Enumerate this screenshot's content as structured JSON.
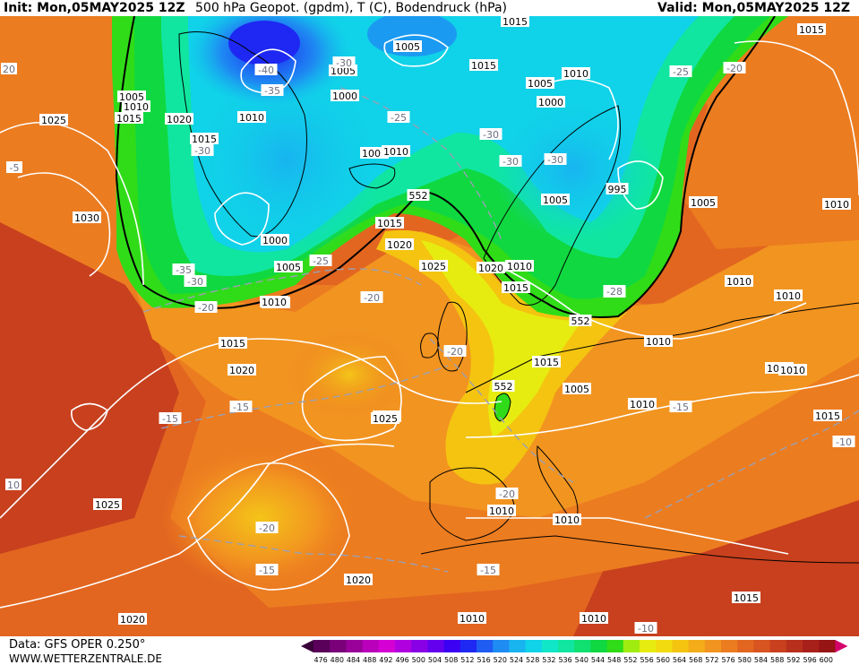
{
  "header": {
    "init": "Init: Mon,05MAY2025 12Z",
    "title": "500 hPa Geopot. (gpdm), T (C), Bodendruck (hPa)",
    "valid": "Valid: Mon,05MAY2025 12Z"
  },
  "footer": {
    "data_source": "Data: GFS OPER 0.250°",
    "website": "WWW.WETTERZENTRALE.DE"
  },
  "legend": {
    "values": [
      "476",
      "480",
      "484",
      "488",
      "492",
      "496",
      "500",
      "504",
      "508",
      "512",
      "516",
      "520",
      "524",
      "528",
      "532",
      "536",
      "540",
      "544",
      "548",
      "552",
      "556",
      "560",
      "564",
      "568",
      "572",
      "576",
      "580",
      "584",
      "588",
      "592",
      "596",
      "600"
    ],
    "colors": [
      "#5a005a",
      "#7a007a",
      "#9a009a",
      "#ba00ba",
      "#d400d4",
      "#b000e0",
      "#8a00e6",
      "#6400ee",
      "#3c00f2",
      "#1e28f2",
      "#1e5cf2",
      "#1e8cf2",
      "#18b4f0",
      "#10d2e8",
      "#10e6c8",
      "#10e6a0",
      "#10e070",
      "#10d840",
      "#30dc18",
      "#a0ec10",
      "#e6ec10",
      "#f2dc10",
      "#f4c410",
      "#f4ac18",
      "#f29420",
      "#ec7c20",
      "#e26620",
      "#d85420",
      "#c8401e",
      "#b8301c",
      "#a8201a",
      "#961414"
    ]
  },
  "isobar_labels": [
    {
      "text": "1015"
    },
    {
      "text": "1005"
    },
    {
      "text": "1005"
    },
    {
      "text": "1015"
    },
    {
      "text": "1010"
    },
    {
      "text": "1015"
    },
    {
      "text": "1025"
    },
    {
      "text": "1020"
    },
    {
      "text": "1010"
    },
    {
      "text": "1005"
    },
    {
      "text": "1005"
    },
    {
      "text": "1010"
    },
    {
      "text": "1015"
    },
    {
      "text": "1000"
    },
    {
      "text": "1005"
    },
    {
      "text": "1010"
    },
    {
      "text": "1030"
    },
    {
      "text": "1000"
    },
    {
      "text": "1005"
    },
    {
      "text": "1010"
    },
    {
      "text": "1015"
    },
    {
      "text": "1020"
    },
    {
      "text": "1025"
    },
    {
      "text": "1020"
    },
    {
      "text": "1010"
    },
    {
      "text": "1015"
    },
    {
      "text": "1005"
    },
    {
      "text": "995"
    },
    {
      "text": "1005"
    },
    {
      "text": "1010"
    },
    {
      "text": "1010"
    },
    {
      "text": "1010"
    },
    {
      "text": "1015"
    },
    {
      "text": "1005"
    },
    {
      "text": "1010"
    },
    {
      "text": "1015"
    },
    {
      "text": "1015"
    },
    {
      "text": "1020"
    },
    {
      "text": "1025"
    },
    {
      "text": "1025"
    },
    {
      "text": "1010"
    },
    {
      "text": "1010"
    },
    {
      "text": "1020"
    },
    {
      "text": "1020"
    },
    {
      "text": "1010"
    },
    {
      "text": "1010"
    },
    {
      "text": "1015"
    },
    {
      "text": "1010"
    },
    {
      "text": "1015"
    },
    {
      "text": "1010"
    },
    {
      "text": "1000"
    },
    {
      "text": "1015"
    },
    {
      "text": "1010"
    },
    {
      "text": "1025"
    }
  ],
  "temp_labels": [
    {
      "text": "-40"
    },
    {
      "text": "-35"
    },
    {
      "text": "-30"
    },
    {
      "text": "-25"
    },
    {
      "text": "-30"
    },
    {
      "text": "-30"
    },
    {
      "text": "-30"
    },
    {
      "text": "-25"
    },
    {
      "text": "-25"
    },
    {
      "text": "-20"
    },
    {
      "text": "-35"
    },
    {
      "text": "-30"
    },
    {
      "text": "-20"
    },
    {
      "text": "-25"
    },
    {
      "text": "-20"
    },
    {
      "text": "-20"
    },
    {
      "text": "-15"
    },
    {
      "text": "-15"
    },
    {
      "text": "-20"
    },
    {
      "text": "-15"
    },
    {
      "text": "-20"
    },
    {
      "text": "-15"
    },
    {
      "text": "-10"
    },
    {
      "text": "-15"
    },
    {
      "text": "-5"
    },
    {
      "text": "-28"
    },
    {
      "text": "-30"
    },
    {
      "text": "10"
    },
    {
      "text": "20"
    },
    {
      "text": "-10"
    }
  ],
  "height_labels": [
    {
      "text": "552"
    },
    {
      "text": "552"
    },
    {
      "text": "552"
    }
  ]
}
